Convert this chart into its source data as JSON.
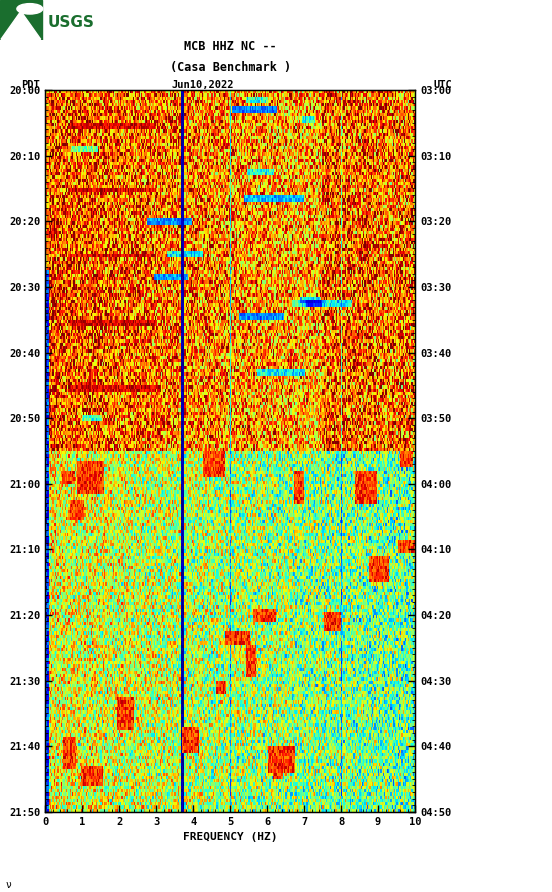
{
  "title_line1": "MCB HHZ NC --",
  "title_line2": "(Casa Benchmark )",
  "date_label": "Jun10,2022",
  "left_tz": "PDT",
  "right_tz": "UTC",
  "freq_label": "FREQUENCY (HZ)",
  "freq_min": 0,
  "freq_max": 10,
  "freq_ticks": [
    0,
    1,
    2,
    3,
    4,
    5,
    6,
    7,
    8,
    9,
    10
  ],
  "time_ticks_left": [
    "20:00",
    "20:10",
    "20:20",
    "20:30",
    "20:40",
    "20:50",
    "21:00",
    "21:10",
    "21:20",
    "21:30",
    "21:40",
    "21:50"
  ],
  "time_ticks_right": [
    "03:00",
    "03:10",
    "03:20",
    "03:30",
    "03:40",
    "03:50",
    "04:00",
    "04:10",
    "04:20",
    "04:30",
    "04:40",
    "04:50"
  ],
  "bg_color": "white",
  "usgs_green": "#1a6e2e",
  "font_family": "monospace",
  "fig_width": 5.52,
  "fig_height": 8.92,
  "spectrogram_seed": 42,
  "spectrogram_rows": 220,
  "spectrogram_cols": 300
}
